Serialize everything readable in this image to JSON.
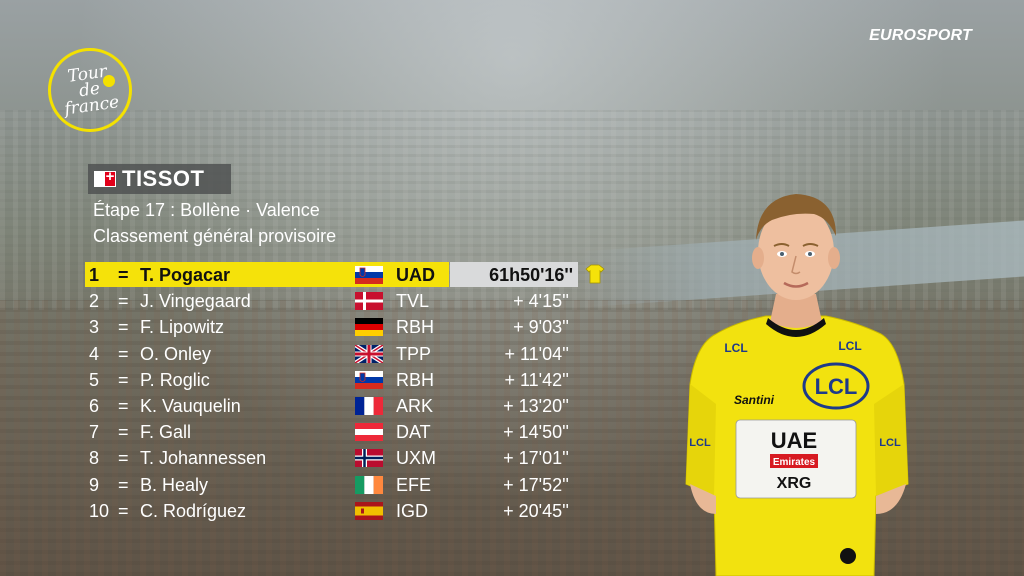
{
  "broadcaster": "EUROSPORT",
  "event_logo_text": "Tour\nde\nfrance",
  "sponsor": "TISSOT",
  "stage": "Étape 17 : Bollène · Valence",
  "classification": "Classement général provisoire",
  "standings": [
    {
      "pos": "1",
      "move": "=",
      "name": "T. Pogacar",
      "country": "SLO",
      "team": "UAD",
      "time": "61h50'16''"
    },
    {
      "pos": "2",
      "move": "=",
      "name": "J. Vingegaard",
      "country": "DEN",
      "team": "TVL",
      "time": "+ 4'15''"
    },
    {
      "pos": "3",
      "move": "=",
      "name": "F. Lipowitz",
      "country": "GER",
      "team": "RBH",
      "time": "+ 9'03''"
    },
    {
      "pos": "4",
      "move": "=",
      "name": "O. Onley",
      "country": "GBR",
      "team": "TPP",
      "time": "+ 11'04''"
    },
    {
      "pos": "5",
      "move": "=",
      "name": "P. Roglic",
      "country": "SLO",
      "team": "RBH",
      "time": "+ 11'42''"
    },
    {
      "pos": "6",
      "move": "=",
      "name": "K. Vauquelin",
      "country": "FRA",
      "team": "ARK",
      "time": "+ 13'20''"
    },
    {
      "pos": "7",
      "move": "=",
      "name": "F. Gall",
      "country": "AUT",
      "team": "DAT",
      "time": "+ 14'50''"
    },
    {
      "pos": "8",
      "move": "=",
      "name": "T. Johannessen",
      "country": "NOR",
      "team": "UXM",
      "time": "+ 17'01''"
    },
    {
      "pos": "9",
      "move": "=",
      "name": "B. Healy",
      "country": "IRL",
      "team": "EFE",
      "time": "+ 17'52''"
    },
    {
      "pos": "10",
      "move": "=",
      "name": "C. Rodríguez",
      "country": "ESP",
      "team": "IGD",
      "time": "+ 20'45''"
    }
  ],
  "rider_jersey": {
    "chest": "LCL",
    "sponsor_main": "UAE",
    "sponsor_sub": "Emirates",
    "sponsor_xrg": "XRG",
    "maker": "Santini"
  },
  "colors": {
    "leader_yellow": "#f5e20a",
    "time_box": "#d9dadb",
    "tdf_yellow": "#f4e100"
  }
}
